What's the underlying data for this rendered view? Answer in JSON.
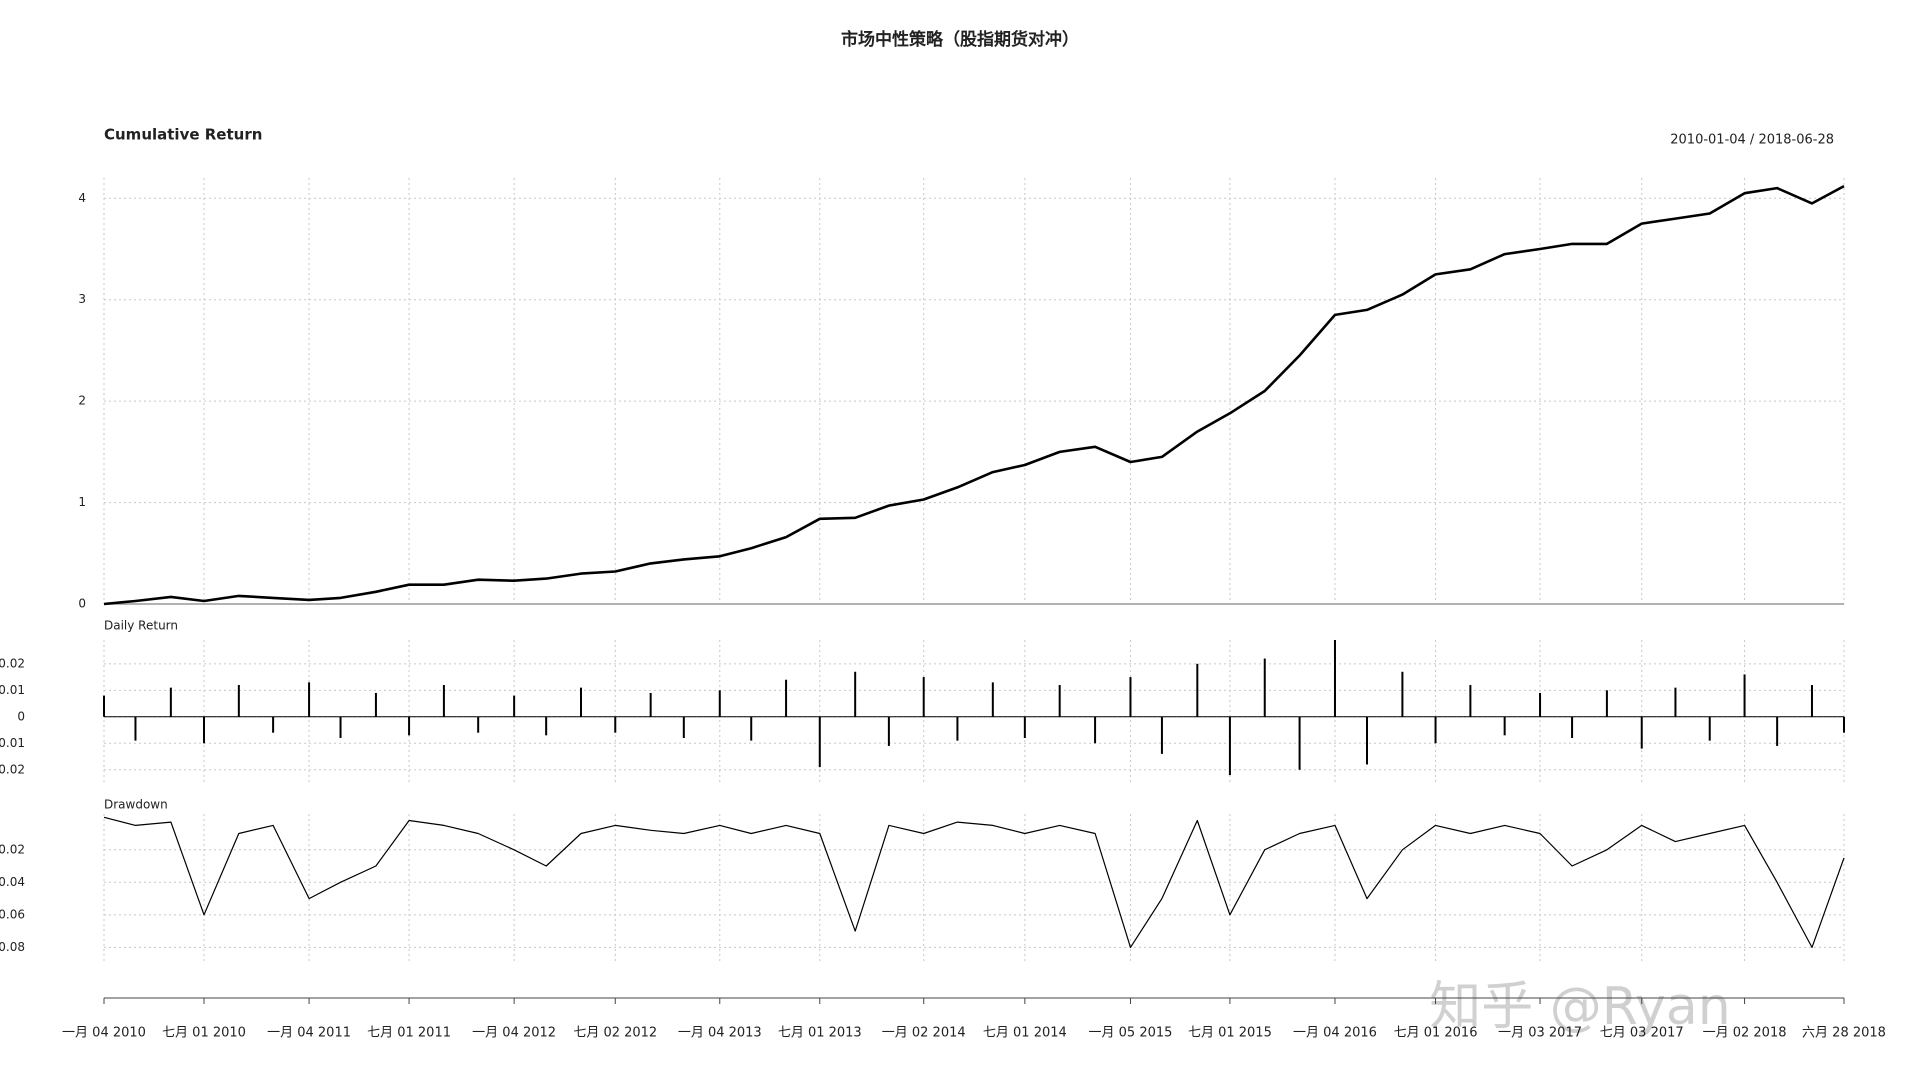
{
  "title": "市场中性策略（股指期货对冲）",
  "watermark": "知乎 @Ryan",
  "chart_data": [
    {
      "type": "line",
      "title": "Cumulative Return",
      "subtitle": "2010-01-04 / 2018-06-28",
      "x": [
        "2010-01-04",
        "2010-03-01",
        "2010-05-03",
        "2010-07-01",
        "2010-09-01",
        "2010-11-01",
        "2011-01-04",
        "2011-03-01",
        "2011-05-03",
        "2011-07-01",
        "2011-09-01",
        "2011-11-01",
        "2012-01-04",
        "2012-03-01",
        "2012-05-02",
        "2012-07-02",
        "2012-09-03",
        "2012-11-01",
        "2013-01-04",
        "2013-03-01",
        "2013-05-02",
        "2013-07-01",
        "2013-09-02",
        "2013-11-01",
        "2014-01-02",
        "2014-03-03",
        "2014-05-05",
        "2014-07-01",
        "2014-09-01",
        "2014-11-03",
        "2015-01-05",
        "2015-03-02",
        "2015-05-04",
        "2015-07-01",
        "2015-09-01",
        "2015-11-02",
        "2016-01-04",
        "2016-03-01",
        "2016-05-03",
        "2016-07-01",
        "2016-09-01",
        "2016-11-01",
        "2017-01-03",
        "2017-03-01",
        "2017-05-02",
        "2017-07-03",
        "2017-09-01",
        "2017-11-01",
        "2018-01-02",
        "2018-03-01",
        "2018-05-02",
        "2018-06-28"
      ],
      "series": [
        {
          "name": "Cumulative Return",
          "color": "#000000",
          "values": [
            0,
            0.03,
            0.07,
            0.03,
            0.08,
            0.06,
            0.04,
            0.06,
            0.12,
            0.19,
            0.19,
            0.24,
            0.23,
            0.25,
            0.3,
            0.32,
            0.4,
            0.44,
            0.47,
            0.55,
            0.66,
            0.84,
            0.85,
            0.97,
            1.03,
            1.15,
            1.3,
            1.37,
            1.5,
            1.55,
            1.4,
            1.45,
            1.7,
            1.88,
            2.1,
            2.45,
            2.85,
            2.9,
            3.05,
            3.25,
            3.3,
            3.45,
            3.5,
            3.55,
            3.55,
            3.75,
            3.8,
            3.85,
            4.05,
            4.1,
            3.95,
            4.12
          ]
        }
      ],
      "xlim": [
        "2010-01-04",
        "2018-06-28"
      ],
      "ylim": [
        0,
        4.2
      ],
      "yticks": [
        0,
        1,
        2,
        3,
        4
      ],
      "grid": true
    },
    {
      "type": "bar",
      "title": "Daily Return",
      "x": [
        "2010-01-04",
        "2010-03-01",
        "2010-05-03",
        "2010-07-01",
        "2010-09-01",
        "2010-11-01",
        "2011-01-04",
        "2011-03-01",
        "2011-05-03",
        "2011-07-01",
        "2011-09-01",
        "2011-11-01",
        "2012-01-04",
        "2012-03-01",
        "2012-05-02",
        "2012-07-02",
        "2012-09-03",
        "2012-11-01",
        "2013-01-04",
        "2013-03-01",
        "2013-05-02",
        "2013-07-01",
        "2013-09-02",
        "2013-11-01",
        "2014-01-02",
        "2014-03-03",
        "2014-05-05",
        "2014-07-01",
        "2014-09-01",
        "2014-11-03",
        "2015-01-05",
        "2015-03-02",
        "2015-05-04",
        "2015-07-01",
        "2015-09-01",
        "2015-11-02",
        "2016-01-04",
        "2016-03-01",
        "2016-05-03",
        "2016-07-01",
        "2016-09-01",
        "2016-11-01",
        "2017-01-03",
        "2017-03-01",
        "2017-05-02",
        "2017-07-03",
        "2017-09-01",
        "2017-11-01",
        "2018-01-02",
        "2018-03-01",
        "2018-05-02",
        "2018-06-28"
      ],
      "series": [
        {
          "name": "Daily Return",
          "color": "#000000",
          "values": [
            0.008,
            -0.009,
            0.011,
            -0.01,
            0.012,
            -0.006,
            0.013,
            -0.008,
            0.009,
            -0.007,
            0.012,
            -0.006,
            0.008,
            -0.007,
            0.011,
            -0.006,
            0.009,
            -0.008,
            0.01,
            -0.009,
            0.014,
            -0.019,
            0.017,
            -0.011,
            0.015,
            -0.009,
            0.013,
            -0.008,
            0.012,
            -0.01,
            0.015,
            -0.014,
            0.02,
            -0.022,
            0.022,
            -0.02,
            0.029,
            -0.018,
            0.017,
            -0.01,
            0.012,
            -0.007,
            0.009,
            -0.008,
            0.01,
            -0.012,
            0.011,
            -0.009,
            0.016,
            -0.011,
            0.012,
            -0.006
          ]
        }
      ],
      "xlim": [
        "2010-01-04",
        "2018-06-28"
      ],
      "ylim": [
        -0.025,
        0.029
      ],
      "yticks": [
        {
          "value": -0.02,
          "label": "0.02"
        },
        {
          "value": -0.01,
          "label": "0.01"
        },
        0.0,
        0.01,
        0.02
      ],
      "grid": true
    },
    {
      "type": "line",
      "title": "Drawdown",
      "x": [
        "2010-01-04",
        "2010-03-01",
        "2010-05-03",
        "2010-07-01",
        "2010-09-01",
        "2010-11-01",
        "2011-01-04",
        "2011-03-01",
        "2011-05-03",
        "2011-07-01",
        "2011-09-01",
        "2011-11-01",
        "2012-01-04",
        "2012-03-01",
        "2012-05-02",
        "2012-07-02",
        "2012-09-03",
        "2012-11-01",
        "2013-01-04",
        "2013-03-01",
        "2013-05-02",
        "2013-07-01",
        "2013-09-02",
        "2013-11-01",
        "2014-01-02",
        "2014-03-03",
        "2014-05-05",
        "2014-07-01",
        "2014-09-01",
        "2014-11-03",
        "2015-01-05",
        "2015-03-02",
        "2015-05-04",
        "2015-07-01",
        "2015-09-01",
        "2015-11-02",
        "2016-01-04",
        "2016-03-01",
        "2016-05-03",
        "2016-07-01",
        "2016-09-01",
        "2016-11-01",
        "2017-01-03",
        "2017-03-01",
        "2017-05-02",
        "2017-07-03",
        "2017-09-01",
        "2017-11-01",
        "2018-01-02",
        "2018-03-01",
        "2018-05-02",
        "2018-06-28"
      ],
      "series": [
        {
          "name": "Drawdown",
          "color": "#000000",
          "values": [
            0,
            -0.005,
            -0.003,
            -0.06,
            -0.01,
            -0.005,
            -0.05,
            -0.04,
            -0.03,
            -0.002,
            -0.005,
            -0.01,
            -0.02,
            -0.03,
            -0.01,
            -0.005,
            -0.008,
            -0.01,
            -0.005,
            -0.01,
            -0.005,
            -0.01,
            -0.07,
            -0.005,
            -0.01,
            -0.003,
            -0.005,
            -0.01,
            -0.005,
            -0.01,
            -0.08,
            -0.05,
            -0.002,
            -0.06,
            -0.02,
            -0.01,
            -0.005,
            -0.05,
            -0.02,
            -0.005,
            -0.01,
            -0.005,
            -0.01,
            -0.03,
            -0.02,
            -0.005,
            -0.015,
            -0.01,
            -0.005,
            -0.04,
            -0.08,
            -0.025
          ]
        }
      ],
      "xlim": [
        "2010-01-04",
        "2018-06-28"
      ],
      "ylim": [
        -0.089,
        0.002
      ],
      "yticks": [
        {
          "value": -0.08,
          "label": "0.08"
        },
        {
          "value": -0.06,
          "label": "0.06"
        },
        {
          "value": -0.04,
          "label": "0.04"
        },
        {
          "value": -0.02,
          "label": "0.02"
        }
      ],
      "xticks": [
        {
          "value": "2010-01-04",
          "label": "一月 04 2010"
        },
        {
          "value": "2010-07-01",
          "label": "七月 01 2010"
        },
        {
          "value": "2011-01-04",
          "label": "一月 04 2011"
        },
        {
          "value": "2011-07-01",
          "label": "七月 01 2011"
        },
        {
          "value": "2012-01-04",
          "label": "一月 04 2012"
        },
        {
          "value": "2012-07-02",
          "label": "七月 02 2012"
        },
        {
          "value": "2013-01-04",
          "label": "一月 04 2013"
        },
        {
          "value": "2013-07-01",
          "label": "七月 01 2013"
        },
        {
          "value": "2014-01-02",
          "label": "一月 02 2014"
        },
        {
          "value": "2014-07-01",
          "label": "七月 01 2014"
        },
        {
          "value": "2015-01-05",
          "label": "一月 05 2015"
        },
        {
          "value": "2015-07-01",
          "label": "七月 01 2015"
        },
        {
          "value": "2016-01-04",
          "label": "一月 04 2016"
        },
        {
          "value": "2016-07-01",
          "label": "七月 01 2016"
        },
        {
          "value": "2017-01-03",
          "label": "一月 03 2017"
        },
        {
          "value": "2017-07-03",
          "label": "七月 03 2017"
        },
        {
          "value": "2018-01-02",
          "label": "一月 02 2018"
        },
        {
          "value": "2018-06-28",
          "label": "六月 28 2018"
        }
      ],
      "grid": true
    }
  ]
}
